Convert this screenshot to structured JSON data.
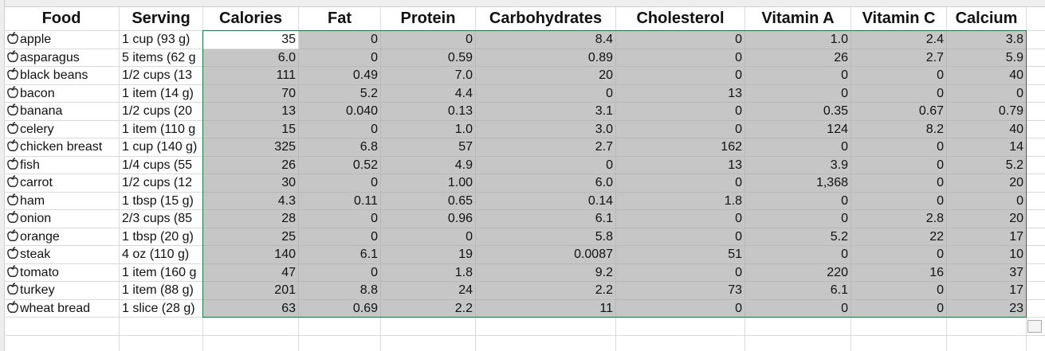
{
  "table": {
    "header": [
      "Food",
      "Serving",
      "Calories",
      "Fat",
      "Protein",
      "Carbohydrates",
      "Cholesterol",
      "Vitamin A",
      "Vitamin C",
      "Calcium"
    ],
    "rows": [
      [
        "apple",
        "1 cup (93 g)",
        "35",
        "0",
        "0",
        "8.4",
        "0",
        "1.0",
        "2.4",
        "3.8"
      ],
      [
        "asparagus",
        "5 items (62 g",
        "6.0",
        "0",
        "0.59",
        "0.89",
        "0",
        "26",
        "2.7",
        "5.9"
      ],
      [
        "black beans",
        "1/2 cups (13",
        "111",
        "0.49",
        "7.0",
        "20",
        "0",
        "0",
        "0",
        "40"
      ],
      [
        "bacon",
        "1 item (14 g)",
        "70",
        "5.2",
        "4.4",
        "0",
        "13",
        "0",
        "0",
        "0"
      ],
      [
        "banana",
        "1/2 cups (20",
        "13",
        "0.040",
        "0.13",
        "3.1",
        "0",
        "0.35",
        "0.67",
        "0.79"
      ],
      [
        "celery",
        "1 item (110 g",
        "15",
        "0",
        "1.0",
        "3.0",
        "0",
        "124",
        "8.2",
        "40"
      ],
      [
        "chicken breast",
        "1 cup (140 g)",
        "325",
        "6.8",
        "57",
        "2.7",
        "162",
        "0",
        "0",
        "14"
      ],
      [
        "fish",
        "1/4 cups (55",
        "26",
        "0.52",
        "4.9",
        "0",
        "13",
        "3.9",
        "0",
        "5.2"
      ],
      [
        "carrot",
        "1/2 cups (12",
        "30",
        "0",
        "1.00",
        "6.0",
        "0",
        "1,368",
        "0",
        "20"
      ],
      [
        "ham",
        "1 tbsp (15 g)",
        "4.3",
        "0.11",
        "0.65",
        "0.14",
        "1.8",
        "0",
        "0",
        "0"
      ],
      [
        "onion",
        "2/3 cups (85",
        "28",
        "0",
        "0.96",
        "6.1",
        "0",
        "0",
        "2.8",
        "20"
      ],
      [
        "orange",
        "1 tbsp (20 g)",
        "25",
        "0",
        "0",
        "5.8",
        "0",
        "5.2",
        "22",
        "17"
      ],
      [
        "steak",
        "4 oz (110 g)",
        "140",
        "6.1",
        "19",
        "0.0087",
        "51",
        "0",
        "0",
        "10"
      ],
      [
        "tomato",
        "1 item (160 g",
        "47",
        "0",
        "1.8",
        "9.2",
        "0",
        "220",
        "16",
        "37"
      ],
      [
        "turkey",
        "1 item (88 g)",
        "201",
        "8.8",
        "24",
        "2.2",
        "73",
        "6.1",
        "0",
        "17"
      ],
      [
        "wheat bread",
        "1 slice (28 g)",
        "63",
        "0.69",
        "2.2",
        "11",
        "0",
        "0",
        "0",
        "23"
      ]
    ]
  }
}
